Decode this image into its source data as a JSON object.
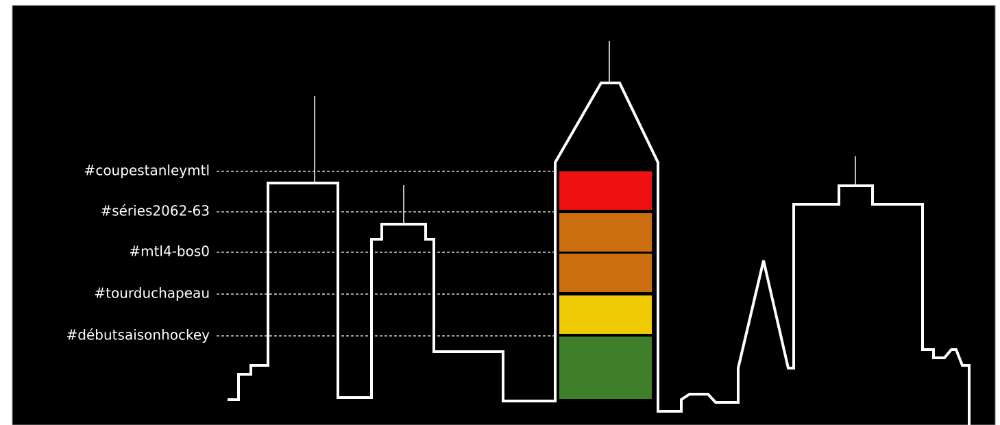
{
  "tags": [
    "#coupestanleymtl",
    "#séries2062-63",
    "#mtl4-bos0",
    "#tourduchapeau",
    "#débutsaisonhockey"
  ]
}
